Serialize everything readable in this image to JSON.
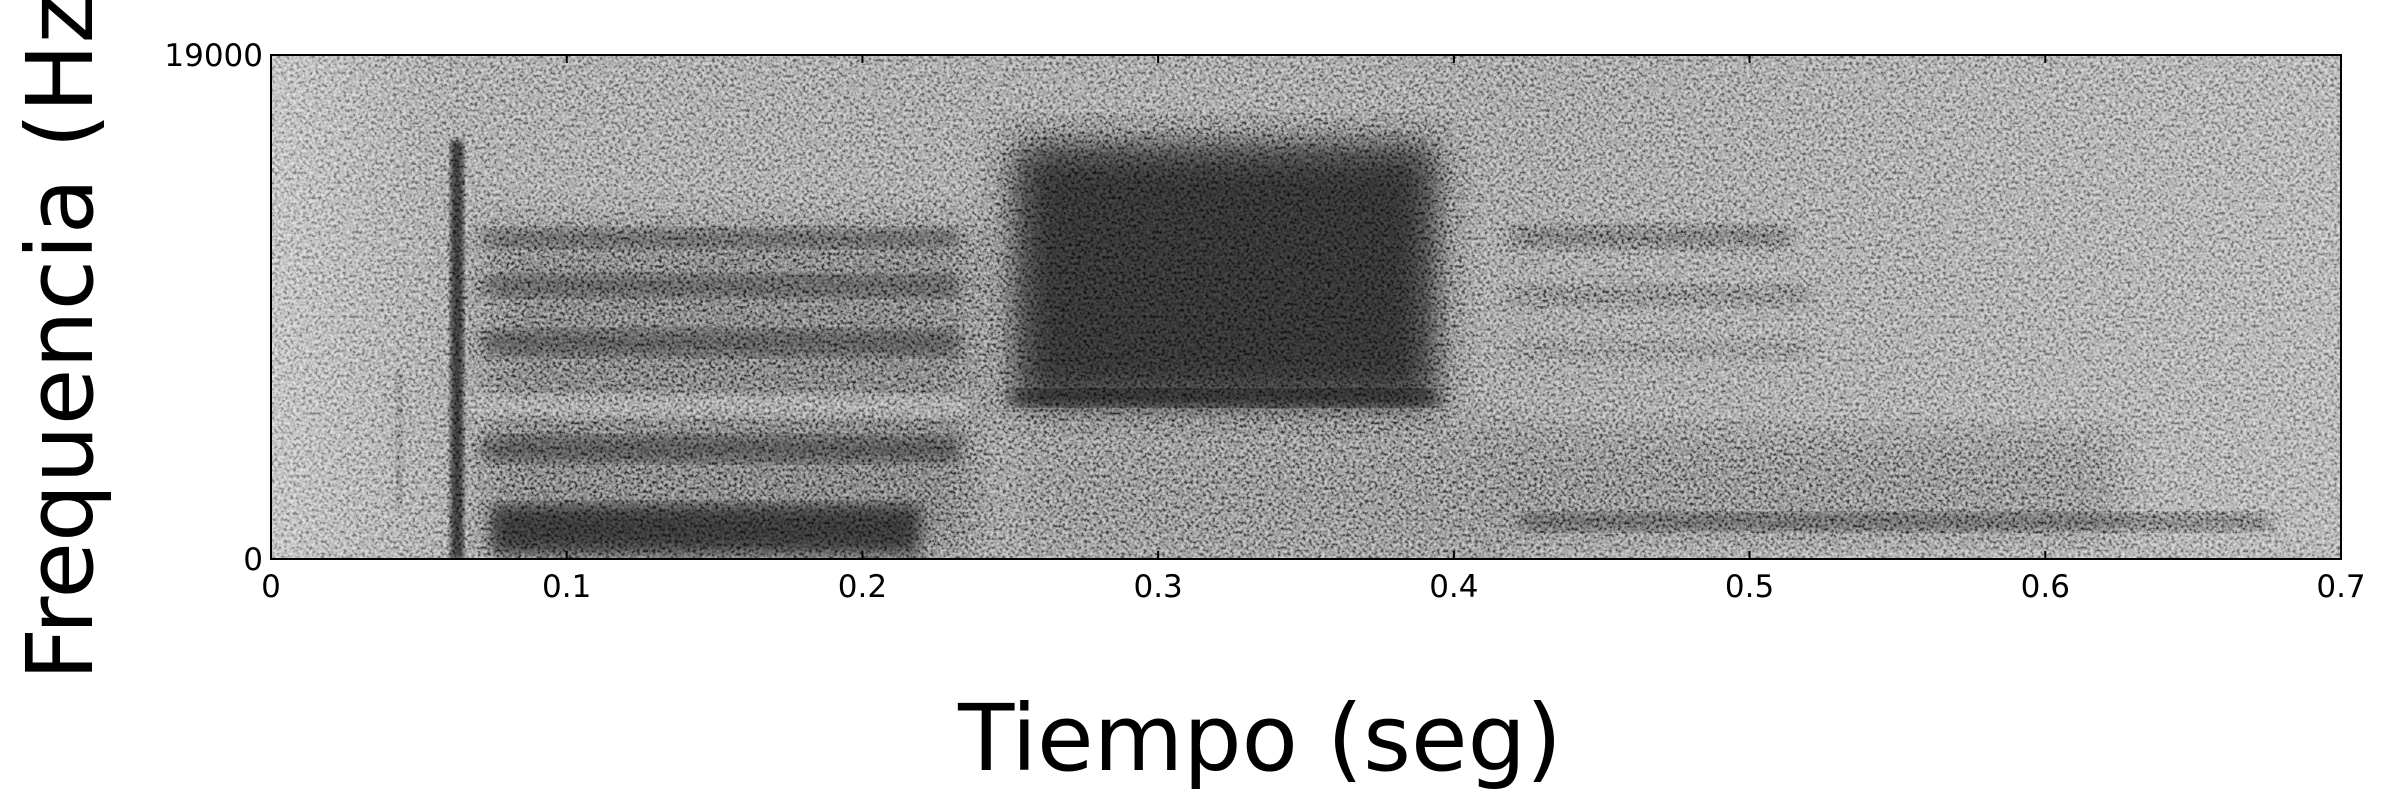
{
  "chart_data": {
    "type": "spectrogram",
    "x_label": "Tiempo (seg)",
    "y_label": "Frequencia (Hz)",
    "xlim": [
      0,
      0.7
    ],
    "xticks": [
      0,
      0.1,
      0.2,
      0.3,
      0.4,
      0.5,
      0.6,
      0.7
    ],
    "ylim": [
      0,
      19000
    ],
    "yticks": [
      0,
      19000
    ]
  }
}
